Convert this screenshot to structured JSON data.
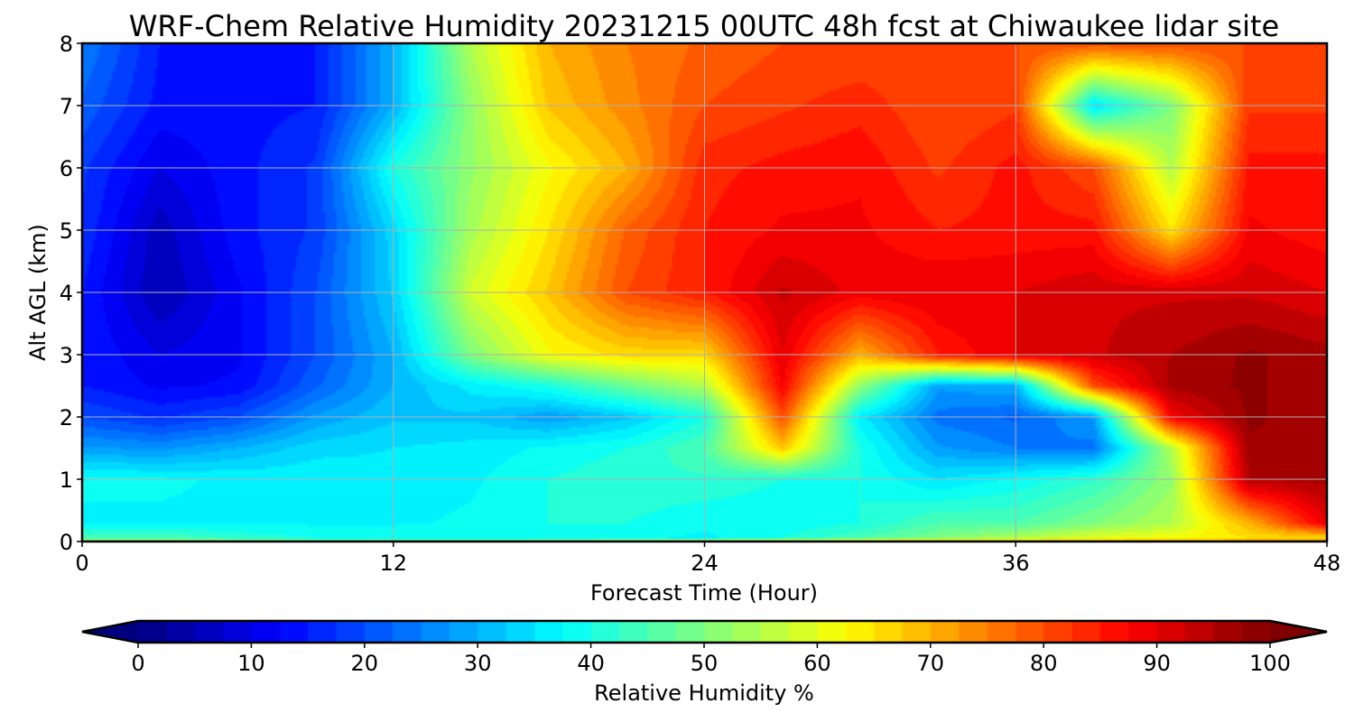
{
  "chart_data": {
    "type": "heatmap",
    "title": "WRF-Chem Relative Humidity 20231215 00UTC 48h fcst at Chiwaukee lidar site",
    "xlabel": "Forecast Time (Hour)",
    "ylabel": "Alt AGL (km)",
    "xlim": [
      0,
      48
    ],
    "ylim": [
      0,
      8
    ],
    "xticks": [
      "0",
      "12",
      "24",
      "36",
      "48"
    ],
    "yticks": [
      "0",
      "1",
      "2",
      "3",
      "4",
      "5",
      "6",
      "7",
      "8"
    ],
    "grid": true,
    "colorbar": {
      "label": "Relative Humidity %",
      "range": [
        0,
        100
      ],
      "ticks": [
        "0",
        "10",
        "20",
        "30",
        "40",
        "50",
        "60",
        "70",
        "80",
        "90",
        "100"
      ],
      "extend": "both",
      "colormap": "jet"
    },
    "x_hours": [
      0,
      3,
      6,
      9,
      12,
      15,
      18,
      21,
      24,
      27,
      30,
      33,
      36,
      39,
      42,
      45,
      48
    ],
    "y_km": [
      0,
      0.05,
      0.3,
      1,
      1.5,
      2,
      2.5,
      3,
      4,
      5,
      6,
      7,
      8
    ],
    "rh_percent": [
      [
        60,
        60,
        55,
        50,
        50,
        50,
        55,
        60,
        65,
        70,
        72,
        75,
        70,
        72,
        72,
        75,
        75
      ],
      [
        45,
        45,
        42,
        40,
        40,
        38,
        38,
        38,
        37,
        40,
        45,
        50,
        55,
        60,
        62,
        65,
        65
      ],
      [
        37,
        37,
        37,
        37,
        37,
        38,
        40,
        40,
        38,
        38,
        40,
        45,
        45,
        50,
        55,
        70,
        90
      ],
      [
        38,
        38,
        37,
        37,
        36,
        37,
        40,
        42,
        42,
        40,
        40,
        35,
        38,
        42,
        52,
        95,
        96
      ],
      [
        28,
        27,
        30,
        34,
        35,
        36,
        38,
        40,
        45,
        68,
        40,
        28,
        25,
        24,
        55,
        97,
        97
      ],
      [
        20,
        17,
        20,
        28,
        32,
        32,
        28,
        32,
        40,
        80,
        36,
        24,
        22,
        28,
        88,
        98,
        96
      ],
      [
        15,
        12,
        13,
        22,
        30,
        36,
        40,
        48,
        55,
        88,
        52,
        28,
        30,
        80,
        96,
        98,
        96
      ],
      [
        15,
        10,
        12,
        20,
        30,
        50,
        62,
        66,
        66,
        90,
        70,
        85,
        90,
        92,
        95,
        98,
        96
      ],
      [
        15,
        5,
        12,
        20,
        33,
        58,
        68,
        80,
        85,
        93,
        89,
        90,
        90,
        92,
        92,
        92,
        90
      ],
      [
        17,
        6,
        14,
        18,
        34,
        54,
        65,
        78,
        85,
        88,
        88,
        85,
        86,
        86,
        65,
        88,
        86
      ],
      [
        18,
        10,
        14,
        18,
        40,
        52,
        62,
        70,
        84,
        86,
        87,
        82,
        86,
        80,
        55,
        86,
        86
      ],
      [
        22,
        14,
        14,
        15,
        30,
        52,
        68,
        74,
        80,
        82,
        84,
        80,
        82,
        35,
        50,
        82,
        82
      ],
      [
        25,
        15,
        15,
        15,
        30,
        55,
        70,
        75,
        78,
        80,
        80,
        82,
        80,
        80,
        80,
        80,
        80
      ]
    ]
  }
}
